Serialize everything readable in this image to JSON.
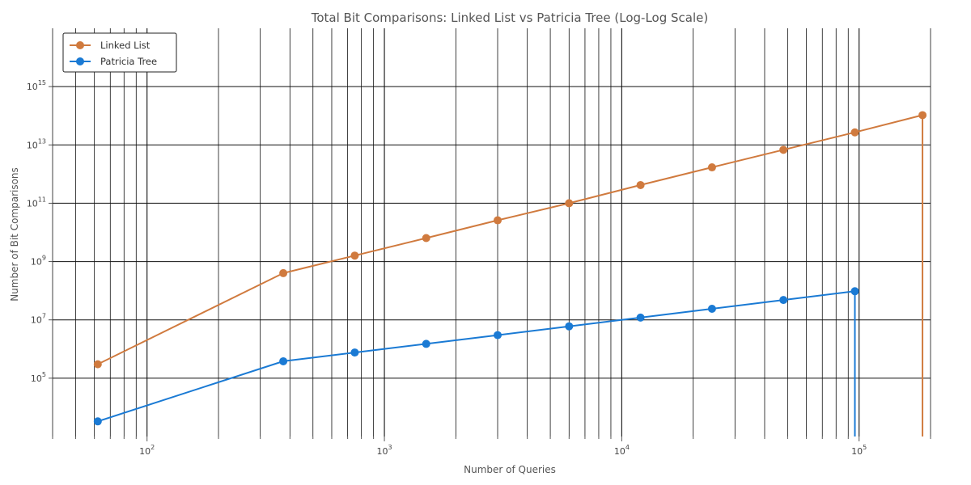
{
  "chart_data": {
    "type": "line",
    "title": "Total Bit Comparisons: Linked List vs Patricia Tree (Log-Log Scale)",
    "xlabel": "Number of Queries",
    "ylabel": "Number of Bit Comparisons",
    "x_scale": "log",
    "y_scale": "log",
    "xlim": [
      40,
      200000
    ],
    "ylim": [
      1000,
      100000000000000000
    ],
    "x_ticks": [
      {
        "base": "10",
        "exp": "2",
        "value": 100
      },
      {
        "base": "10",
        "exp": "3",
        "value": 1000
      },
      {
        "base": "10",
        "exp": "4",
        "value": 10000
      },
      {
        "base": "10",
        "exp": "5",
        "value": 100000
      }
    ],
    "y_ticks": [
      {
        "base": "10",
        "exp": "5",
        "value": 100000
      },
      {
        "base": "10",
        "exp": "7",
        "value": 10000000
      },
      {
        "base": "10",
        "exp": "9",
        "value": 1000000000
      },
      {
        "base": "10",
        "exp": "11",
        "value": 100000000000
      },
      {
        "base": "10",
        "exp": "13",
        "value": 10000000000000
      },
      {
        "base": "10",
        "exp": "15",
        "value": 1000000000000000
      }
    ],
    "grid": true,
    "legend_position": "top-left",
    "series": [
      {
        "name": "Linked List",
        "color": "#d07a3e",
        "points": [
          [
            62,
            300000
          ],
          [
            375,
            400000000
          ],
          [
            750,
            1600000000
          ],
          [
            1500,
            6400000000
          ],
          [
            3000,
            26000000000
          ],
          [
            6000,
            100000000000
          ],
          [
            12000,
            420000000000
          ],
          [
            24000,
            1700000000000
          ],
          [
            48000,
            6800000000000
          ],
          [
            96000,
            27000000000000
          ],
          [
            185000,
            105000000000000
          ]
        ],
        "drop_to_axis_x": 185000
      },
      {
        "name": "Patricia Tree",
        "color": "#1a7ad4",
        "points": [
          [
            62,
            3300
          ],
          [
            375,
            380000
          ],
          [
            750,
            760000
          ],
          [
            1500,
            1500000
          ],
          [
            3000,
            3000000
          ],
          [
            6000,
            6000000
          ],
          [
            12000,
            12000000
          ],
          [
            24000,
            24000000
          ],
          [
            48000,
            48000000
          ],
          [
            96000,
            96000000
          ]
        ],
        "drop_to_axis_x": 96000
      }
    ]
  }
}
